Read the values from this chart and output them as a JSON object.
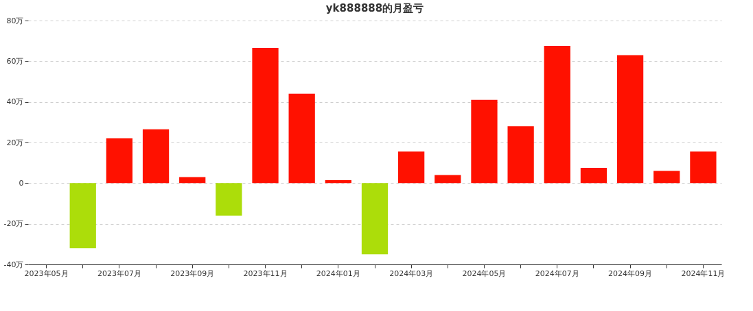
{
  "chart_data": {
    "type": "bar",
    "title": "yk888888的月盈亏",
    "categories": [
      "2023年05月",
      null,
      "2023年07月",
      null,
      "2023年09月",
      null,
      "2023年11月",
      null,
      "2024年01月",
      null,
      "2024年03月",
      null,
      "2024年05月",
      null,
      "2024年07月",
      null,
      "2024年09月",
      null,
      "2024年11月"
    ],
    "values": [
      0,
      -32,
      22,
      26.5,
      3,
      -16,
      66.5,
      44,
      1.5,
      -35,
      15.5,
      4,
      41,
      28,
      67.5,
      7.5,
      63,
      6,
      15.5
    ],
    "colors": [
      "#ff1100",
      "#acdd0a",
      "#ff1100",
      "#ff1100",
      "#ff1100",
      "#acdd0a",
      "#ff1100",
      "#ff1100",
      "#ff1100",
      "#acdd0a",
      "#ff1100",
      "#ff1100",
      "#ff1100",
      "#ff1100",
      "#ff1100",
      "#ff1100",
      "#ff1100",
      "#ff1100",
      "#ff1100"
    ],
    "ylim": [
      -40,
      80
    ],
    "yticks": [
      {
        "value": -40,
        "label": "-40万"
      },
      {
        "value": -20,
        "label": "-20万"
      },
      0,
      {
        "value": 20,
        "label": "20万"
      },
      {
        "value": 40,
        "label": "40万"
      },
      {
        "value": 60,
        "label": "60万"
      },
      {
        "value": 80,
        "label": "80万"
      }
    ],
    "grid": "y"
  }
}
